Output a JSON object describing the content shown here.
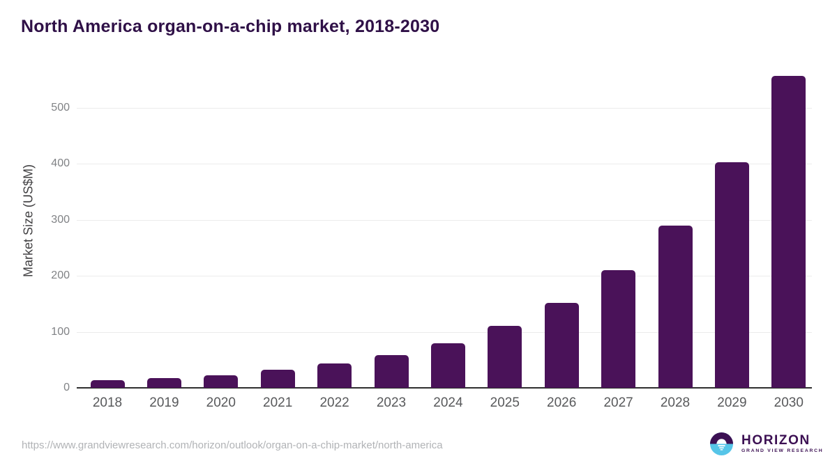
{
  "header": {
    "title": "North America organ-on-a-chip market, 2018-2030"
  },
  "chart_data": {
    "type": "bar",
    "categories": [
      "2018",
      "2019",
      "2020",
      "2021",
      "2022",
      "2023",
      "2024",
      "2025",
      "2026",
      "2027",
      "2028",
      "2029",
      "2030"
    ],
    "values": [
      14,
      18,
      23,
      32,
      43,
      59,
      80,
      111,
      152,
      210,
      290,
      403,
      557
    ],
    "title": "North America organ-on-a-chip market, 2018-2030",
    "xlabel": "",
    "ylabel": "Market Size (US$M)",
    "ylim": [
      0,
      570
    ],
    "yticks": [
      0,
      100,
      200,
      300,
      400,
      500
    ],
    "grid": true,
    "legend": false,
    "bar_color": "#4A1259"
  },
  "footer": {
    "source_url": "https://www.grandviewresearch.com/horizon/outlook/organ-on-a-chip-market/north-america",
    "logo": {
      "wordmark": "HORIZON",
      "subtitle": "GRAND VIEW RESEARCH"
    }
  },
  "colors": {
    "title_text": "#2F1047",
    "bar": "#4A1259",
    "axis_line": "#2E2E2E",
    "gridline": "#EBEBEB",
    "y_tick_label": "#808285",
    "x_tick_label": "#58595B",
    "axis_title": "#414042",
    "url_text": "#B1B3B6",
    "logo_purple": "#3C1053",
    "logo_blue": "#56C5E8"
  }
}
